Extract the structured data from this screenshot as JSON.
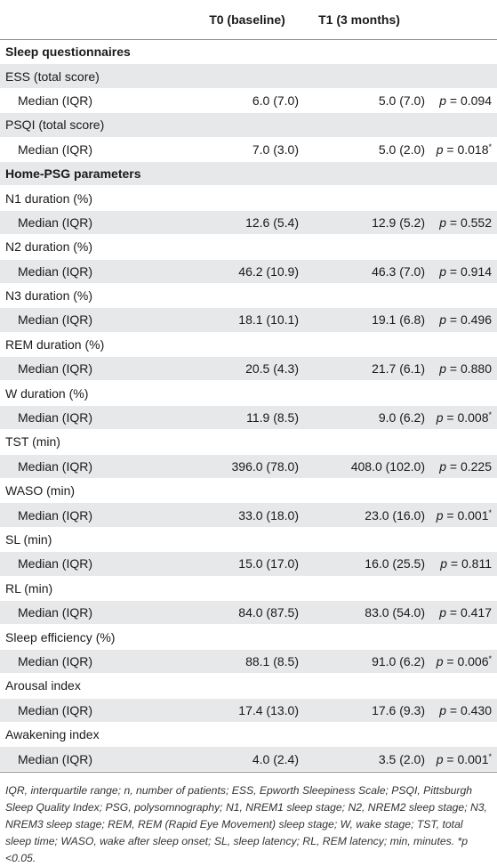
{
  "header": {
    "col0": "",
    "col1": "T0 (baseline)",
    "col2": "T1 (3 months)",
    "col3": ""
  },
  "rows": [
    {
      "type": "section",
      "label": "Sleep questionnaires"
    },
    {
      "type": "param",
      "label": "ESS (total score)"
    },
    {
      "type": "sub",
      "label": "Median (IQR)",
      "t0": "6.0 (7.0)",
      "t1": "5.0 (7.0)",
      "p": "p",
      "peq": " = 0.094",
      "star": ""
    },
    {
      "type": "param",
      "label": "PSQI (total score)"
    },
    {
      "type": "sub",
      "label": "Median (IQR)",
      "t0": "7.0 (3.0)",
      "t1": "5.0 (2.0)",
      "p": "p",
      "peq": " = 0.018",
      "star": "*"
    },
    {
      "type": "section",
      "label": "Home-PSG parameters"
    },
    {
      "type": "param",
      "label": "N1 duration (%)"
    },
    {
      "type": "sub",
      "label": "Median (IQR)",
      "t0": "12.6 (5.4)",
      "t1": "12.9 (5.2)",
      "p": "p",
      "peq": " = 0.552",
      "star": ""
    },
    {
      "type": "param",
      "label": "N2 duration (%)"
    },
    {
      "type": "sub",
      "label": "Median (IQR)",
      "t0": "46.2 (10.9)",
      "t1": "46.3 (7.0)",
      "p": "p",
      "peq": " = 0.914",
      "star": ""
    },
    {
      "type": "param",
      "label": "N3 duration (%)"
    },
    {
      "type": "sub",
      "label": "Median (IQR)",
      "t0": "18.1 (10.1)",
      "t1": "19.1 (6.8)",
      "p": "p",
      "peq": " = 0.496",
      "star": ""
    },
    {
      "type": "param",
      "label": "REM duration (%)"
    },
    {
      "type": "sub",
      "label": "Median (IQR)",
      "t0": "20.5 (4.3)",
      "t1": "21.7 (6.1)",
      "p": "p",
      "peq": " = 0.880",
      "star": ""
    },
    {
      "type": "param",
      "label": "W duration (%)"
    },
    {
      "type": "sub",
      "label": "Median (IQR)",
      "t0": "11.9 (8.5)",
      "t1": "9.0 (6.2)",
      "p": "p",
      "peq": " = 0.008",
      "star": "*"
    },
    {
      "type": "param",
      "label": "TST (min)"
    },
    {
      "type": "sub",
      "label": "Median (IQR)",
      "t0": "396.0 (78.0)",
      "t1": "408.0 (102.0)",
      "p": "p",
      "peq": " = 0.225",
      "star": ""
    },
    {
      "type": "param",
      "label": "WASO (min)"
    },
    {
      "type": "sub",
      "label": "Median (IQR)",
      "t0": "33.0 (18.0)",
      "t1": "23.0 (16.0)",
      "p": "p",
      "peq": " = 0.001",
      "star": "*"
    },
    {
      "type": "param",
      "label": "SL (min)"
    },
    {
      "type": "sub",
      "label": "Median (IQR)",
      "t0": "15.0 (17.0)",
      "t1": "16.0 (25.5)",
      "p": "p",
      "peq": " = 0.811",
      "star": ""
    },
    {
      "type": "param",
      "label": "RL (min)"
    },
    {
      "type": "sub",
      "label": "Median (IQR)",
      "t0": "84.0 (87.5)",
      "t1": "83.0 (54.0)",
      "p": "p",
      "peq": " = 0.417",
      "star": ""
    },
    {
      "type": "param",
      "label": "Sleep efficiency (%)"
    },
    {
      "type": "sub",
      "label": "Median (IQR)",
      "t0": "88.1 (8.5)",
      "t1": "91.0 (6.2)",
      "p": "p",
      "peq": " = 0.006",
      "star": "*"
    },
    {
      "type": "param",
      "label": "Arousal index"
    },
    {
      "type": "sub",
      "label": "Median (IQR)",
      "t0": "17.4 (13.0)",
      "t1": "17.6 (9.3)",
      "p": "p",
      "peq": " = 0.430",
      "star": ""
    },
    {
      "type": "param",
      "label": "Awakening index"
    },
    {
      "type": "sub",
      "label": "Median (IQR)",
      "t0": "4.0 (2.4)",
      "t1": "3.5 (2.0)",
      "p": "p",
      "peq": " = 0.001",
      "star": "*"
    }
  ],
  "footnote": "IQR, interquartile range; n, number of patients; ESS, Epworth Sleepiness Scale; PSQI, Pittsburgh Sleep Quality Index; PSG, polysomnography; N1, NREM1 sleep stage; N2, NREM2 sleep stage; N3, NREM3 sleep stage; REM, REM (Rapid Eye Movement) sleep stage; W, wake stage; TST, total sleep time; WASO, wake after sleep onset; SL, sleep latency; RL, REM latency; min, minutes. *p <0.05.",
  "colors": {
    "shade": "#e6e8e9",
    "rule": "#8a8a8a"
  }
}
